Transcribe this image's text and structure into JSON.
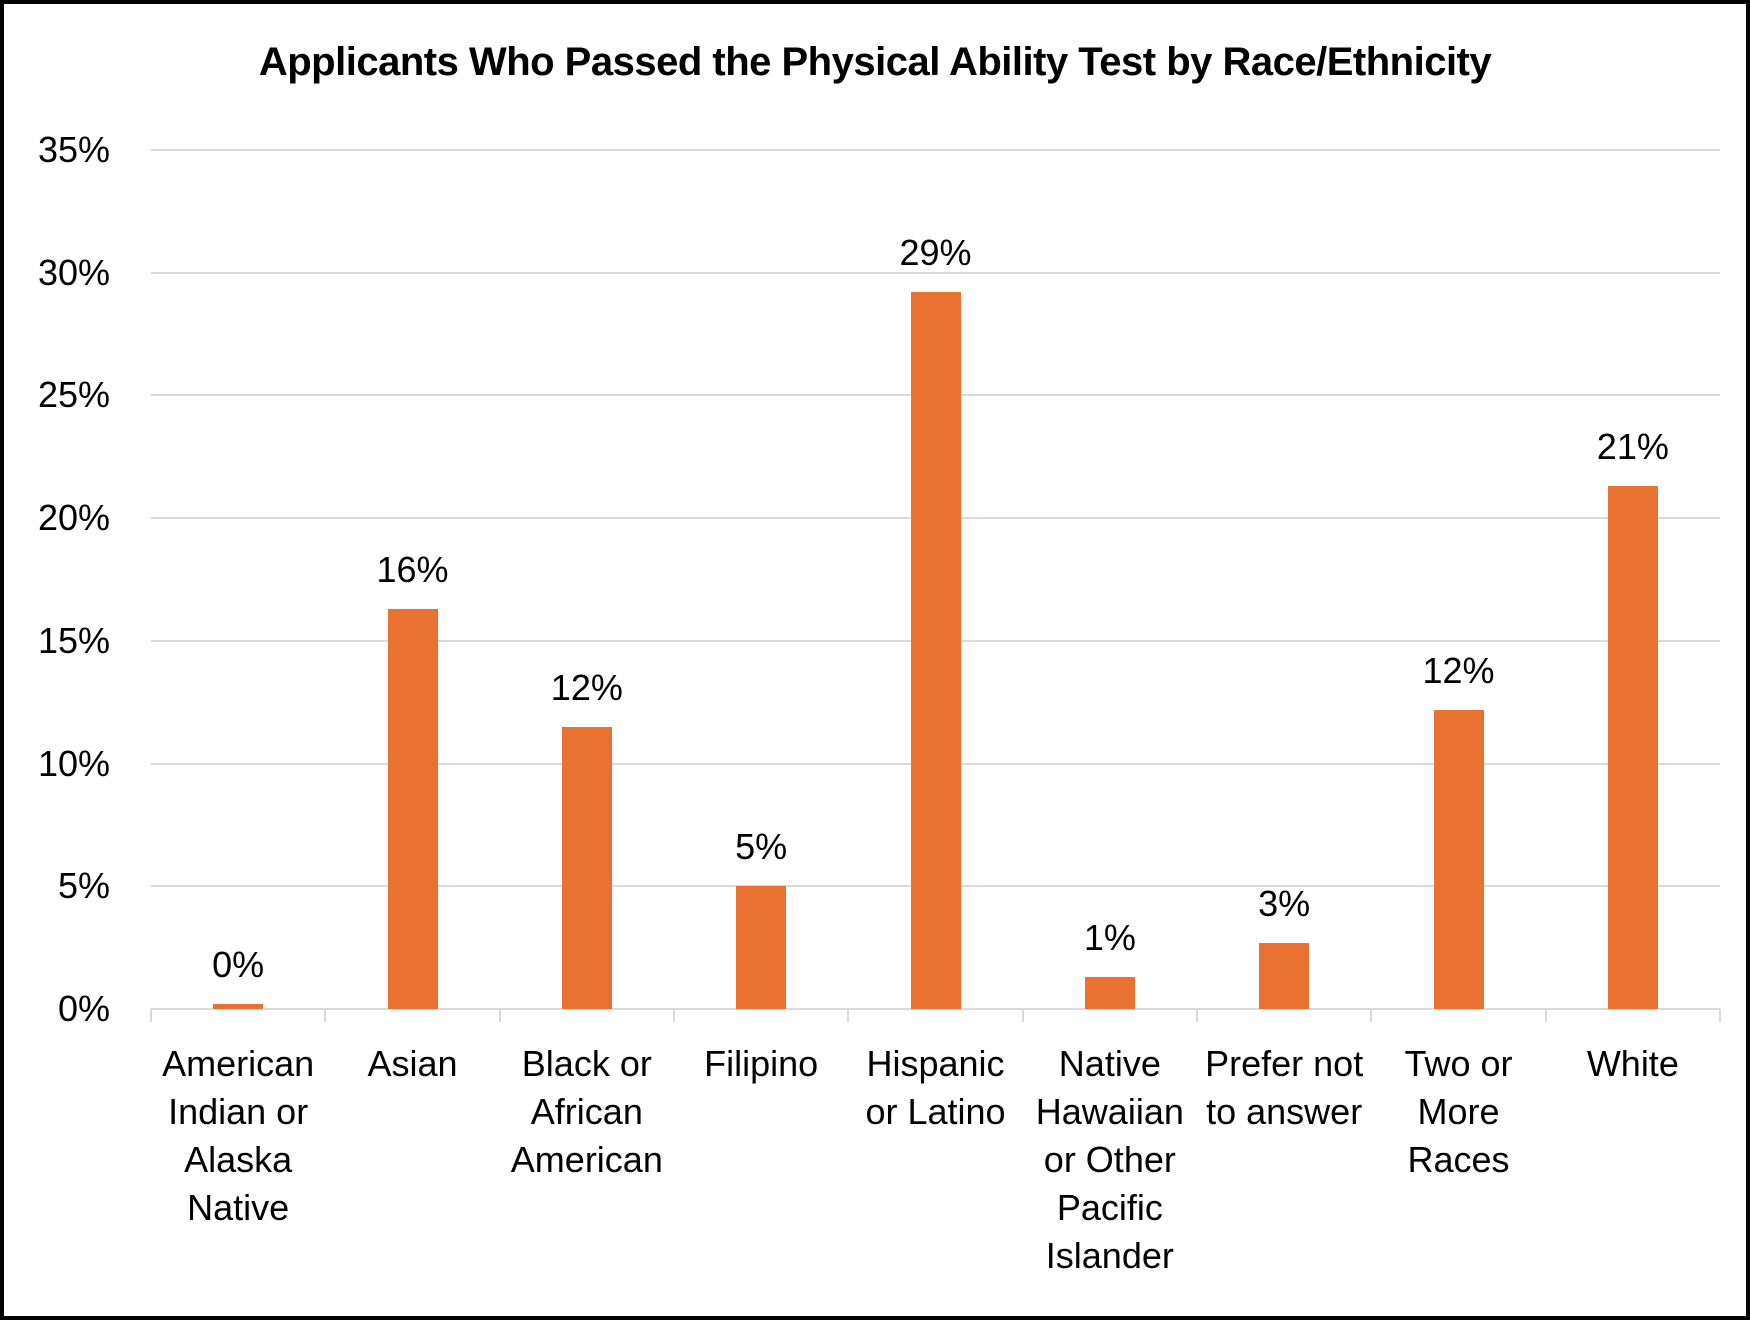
{
  "chart_data": {
    "type": "bar",
    "title": "Applicants Who Passed the Physical Ability Test by Race/Ethnicity",
    "categories": [
      "American\nIndian or\nAlaska\nNative",
      "Asian",
      "Black or\nAfrican\nAmerican",
      "Filipino",
      "Hispanic\nor Latino",
      "Native\nHawaiian\nor Other\nPacific\nIslander",
      "Prefer not\nto answer",
      "Two or\nMore\nRaces",
      "White"
    ],
    "values": [
      0.2,
      16.3,
      11.5,
      5.0,
      29.2,
      1.3,
      2.7,
      12.2,
      21.3
    ],
    "value_labels": [
      "0%",
      "16%",
      "12%",
      "5%",
      "29%",
      "1%",
      "3%",
      "12%",
      "21%"
    ],
    "xlabel": "",
    "ylabel": "",
    "ylim": [
      0,
      35
    ],
    "ytick_step": 5,
    "ytick_labels": [
      "0%",
      "5%",
      "10%",
      "15%",
      "20%",
      "25%",
      "30%",
      "35%"
    ],
    "grid": true,
    "legend": "none",
    "bar_color": "#E97132",
    "gridline_color": "#D9D9D9",
    "text_color": "#000000",
    "background_color": "#FFFFFF",
    "border_color": "#000000"
  }
}
